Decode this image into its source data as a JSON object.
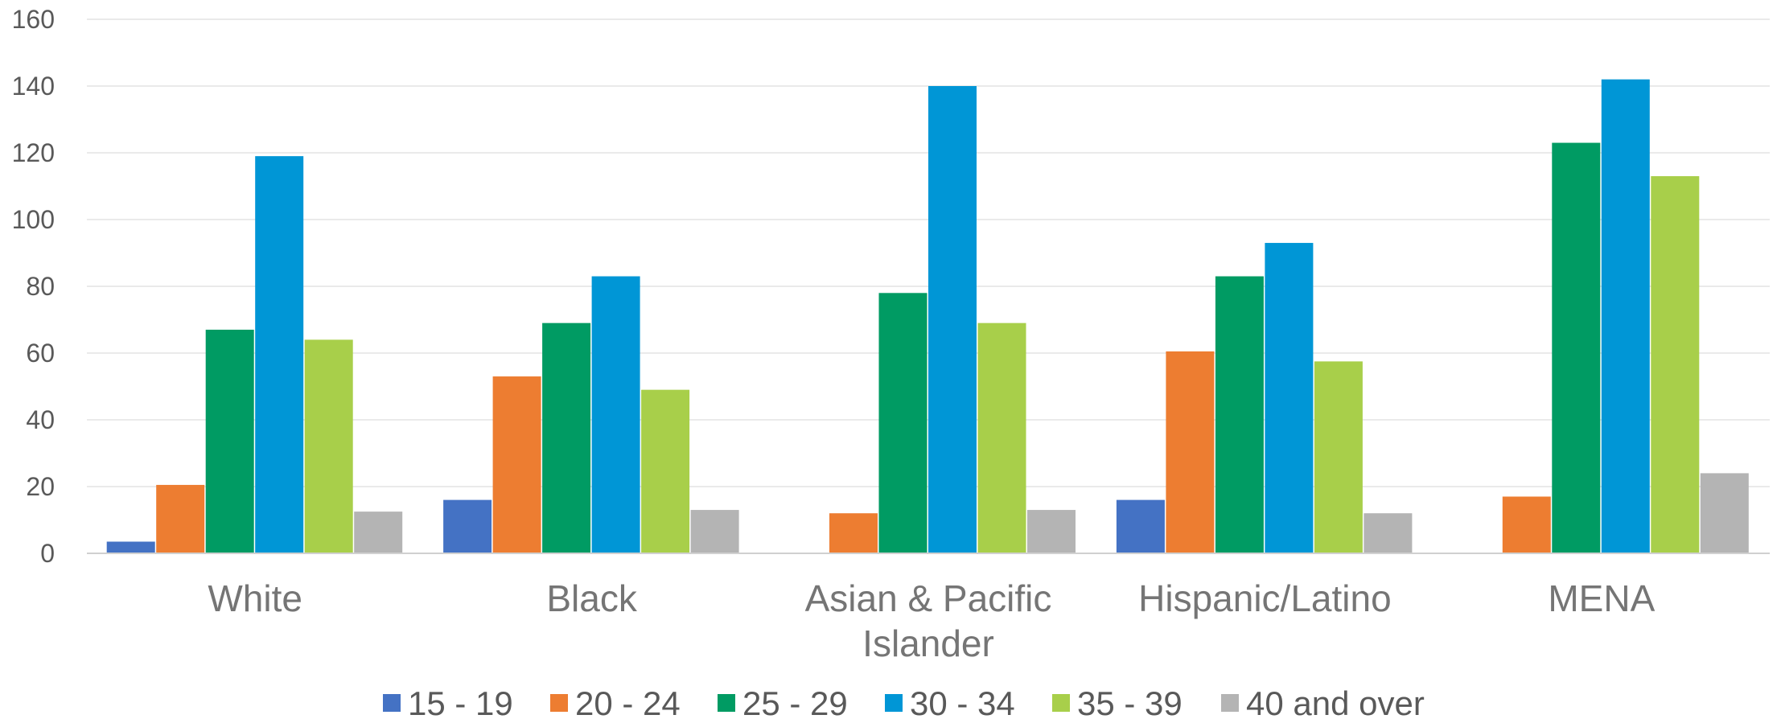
{
  "chart_data": {
    "type": "bar",
    "title": "",
    "xlabel": "",
    "ylabel": "",
    "ylim": [
      0,
      160
    ],
    "yticks": [
      0,
      20,
      40,
      60,
      80,
      100,
      120,
      140,
      160
    ],
    "grid": true,
    "legend": "bottom",
    "categories": [
      [
        "White"
      ],
      [
        "Black"
      ],
      [
        "Asian & Pacific",
        "Islander"
      ],
      [
        "Hispanic/Latino"
      ],
      [
        "MENA"
      ]
    ],
    "series": [
      {
        "name": "15 - 19",
        "color": "#4472C4",
        "values": [
          3.5,
          16,
          0,
          16,
          0
        ]
      },
      {
        "name": "20 - 24",
        "color": "#ED7D31",
        "values": [
          20.5,
          53,
          12,
          60.5,
          17
        ]
      },
      {
        "name": "25 - 29",
        "color": "#009B63",
        "values": [
          67,
          69,
          78,
          83,
          123
        ]
      },
      {
        "name": "30 - 34",
        "color": "#0096D6",
        "values": [
          119,
          83,
          140,
          93,
          142
        ]
      },
      {
        "name": "35 - 39",
        "color": "#A8CF4A",
        "values": [
          64,
          49,
          69,
          57.5,
          113
        ]
      },
      {
        "name": "40 and over",
        "color": "#B4B4B4",
        "values": [
          12.5,
          13,
          13,
          12,
          24
        ]
      }
    ]
  }
}
